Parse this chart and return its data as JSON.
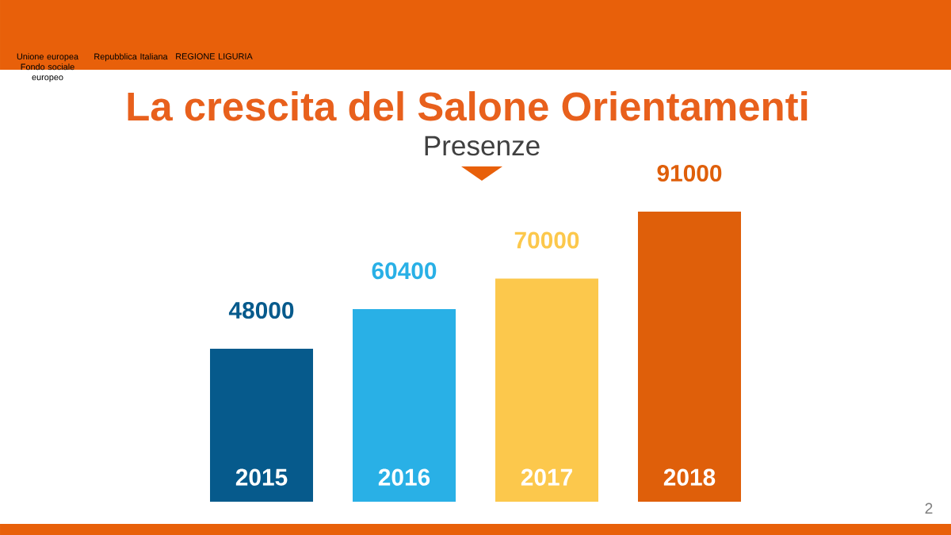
{
  "chart_data": {
    "type": "bar",
    "title": "La crescita del Salone Orientamenti",
    "subtitle": "Presenze",
    "categories": [
      "2015",
      "2016",
      "2017",
      "2018"
    ],
    "values": [
      48000,
      60400,
      70000,
      91000
    ],
    "colors": [
      "#065a8c",
      "#29b0e6",
      "#fcc84c",
      "#df5f0a"
    ],
    "data_labels": true,
    "annotations": [
      "Unione europea\nFondo sociale europeo",
      "Repubblica Italiana",
      "REGIONE LIGURIA",
      "2"
    ]
  }
}
